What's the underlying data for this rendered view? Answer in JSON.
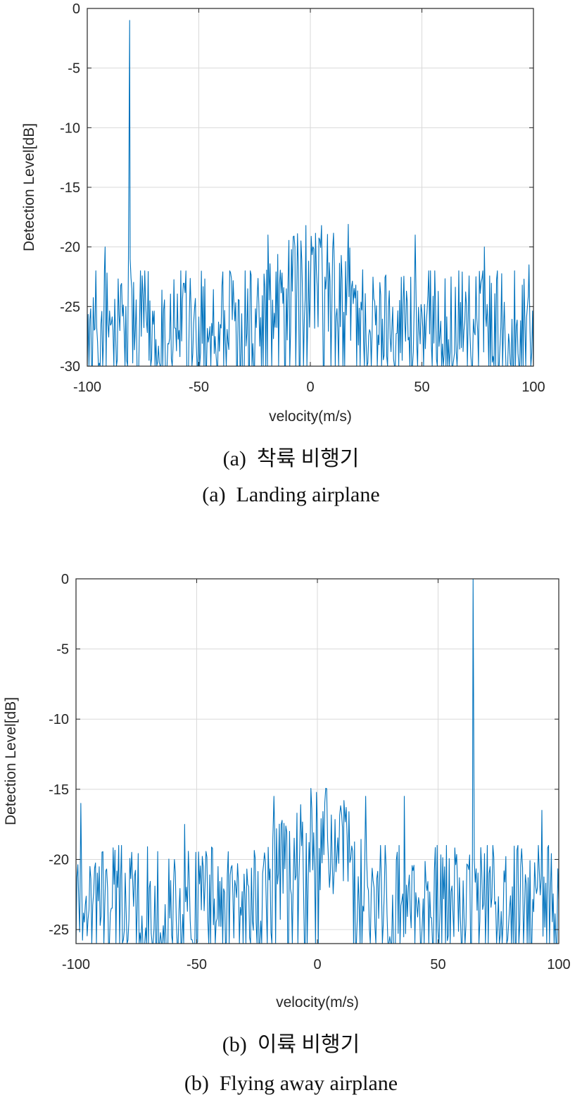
{
  "colors": {
    "line": "#0072BD",
    "axis": "#262626",
    "grid": "#d9d9d9"
  },
  "chart_data": [
    {
      "type": "line",
      "xlabel": "velocity(m/s)",
      "ylabel": "Detection Level[dB]",
      "xlim": [
        -100,
        100
      ],
      "ylim": [
        -30,
        0
      ],
      "xticks": [
        "-100",
        "-50",
        "0",
        "50",
        "100"
      ],
      "yticks": [
        "-30",
        "-25",
        "-20",
        "-15",
        "-10",
        "-5",
        "0"
      ],
      "grid": true,
      "caption_ko": "(a)  착륙 비행기",
      "caption_en": "(a)  Landing airplane",
      "noise": {
        "floor": -30,
        "base_level": -26.5,
        "spread": 4.5,
        "num_samples": 520
      },
      "peaks": [
        {
          "x": -81,
          "y": -1
        },
        {
          "x": -92,
          "y": -20
        },
        {
          "x": -19,
          "y": -19
        },
        {
          "x": -2,
          "y": -18.2
        },
        {
          "x": 5,
          "y": -18.2
        },
        {
          "x": 17,
          "y": -18.1
        },
        {
          "x": 47,
          "y": -19
        },
        {
          "x": 78,
          "y": -20
        },
        {
          "x": 98,
          "y": -21.5
        }
      ],
      "regions": [
        {
          "from": -20,
          "to": 25,
          "level": -23.5
        }
      ]
    },
    {
      "type": "line",
      "xlabel": "velocity(m/s)",
      "ylabel": "Detection Level[dB]",
      "xlim": [
        -100,
        100
      ],
      "ylim": [
        -26,
        0
      ],
      "xticks": [
        "-100",
        "-50",
        "0",
        "50",
        "100"
      ],
      "yticks": [
        "-25",
        "-20",
        "-15",
        "-10",
        "-5",
        "0"
      ],
      "grid": true,
      "caption_ko": "(b)  이륙 비행기",
      "caption_en": "(b)  Flying away airplane",
      "noise": {
        "floor": -26,
        "base_level": -23,
        "spread": 4,
        "num_samples": 520
      },
      "peaks": [
        {
          "x": 64.5,
          "y": 0
        },
        {
          "x": -98,
          "y": -16
        },
        {
          "x": -55,
          "y": -17.5
        },
        {
          "x": -18,
          "y": -15.5
        },
        {
          "x": 11,
          "y": -15.8
        },
        {
          "x": 20,
          "y": -15.5
        },
        {
          "x": 36,
          "y": -15.5
        },
        {
          "x": 93,
          "y": -16.5
        }
      ],
      "regions": [
        {
          "from": -20,
          "to": 20,
          "level": -19.5
        }
      ]
    }
  ]
}
